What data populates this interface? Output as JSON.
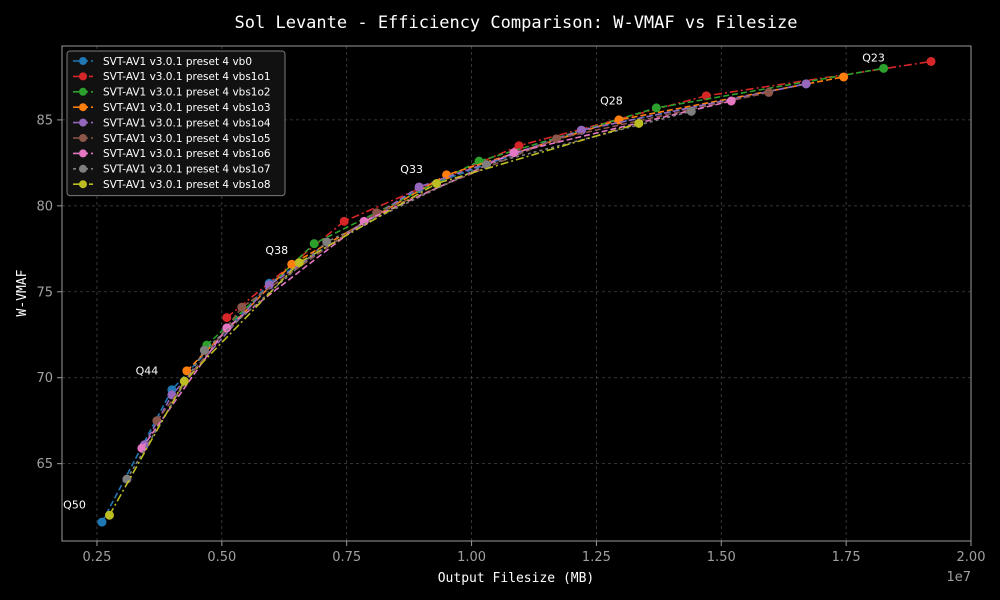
{
  "chart_data": {
    "type": "line",
    "title": "Sol Levante - Efficiency Comparison: W-VMAF vs Filesize",
    "xlabel": "Output Filesize (MB)",
    "ylabel": "W-VMAF",
    "x_offset_label": "1e7",
    "xlim": [
      1800000,
      20000000
    ],
    "ylim": [
      60.5,
      89.3
    ],
    "x_ticks": [
      2500000,
      5000000,
      7500000,
      10000000,
      12500000,
      15000000,
      17500000,
      20000000
    ],
    "x_tick_labels": [
      "0.25",
      "0.50",
      "0.75",
      "1.00",
      "1.25",
      "1.50",
      "1.75",
      "2.00"
    ],
    "y_ticks": [
      65,
      70,
      75,
      80,
      85
    ],
    "y_tick_labels": [
      "65",
      "70",
      "75",
      "80",
      "85"
    ],
    "grid": true,
    "legend_position": "top-left",
    "series": [
      {
        "name": "SVT-AV1 v3.0.1 preset 4 vb0",
        "color": "#1f77b4",
        "dash": "6,3",
        "points": [
          [
            2600000,
            61.6
          ],
          [
            4000000,
            69.3
          ],
          [
            5950000,
            75.5
          ],
          [
            8950000,
            81.0
          ],
          [
            12200000,
            84.4
          ],
          [
            16700000,
            87.1
          ]
        ]
      },
      {
        "name": "SVT-AV1 v3.0.1 preset 4 vbs1o1",
        "color": "#d62728",
        "dash": "8,3,2,3",
        "points": [
          [
            5100000,
            73.5
          ],
          [
            7450000,
            79.1
          ],
          [
            10950000,
            83.5
          ],
          [
            14700000,
            86.4
          ],
          [
            19200000,
            88.4
          ]
        ]
      },
      {
        "name": "SVT-AV1 v3.0.1 preset 4 vbs1o2",
        "color": "#2ca02c",
        "dash": "6,3",
        "points": [
          [
            4700000,
            71.9
          ],
          [
            6850000,
            77.8
          ],
          [
            10150000,
            82.6
          ],
          [
            13700000,
            85.7
          ],
          [
            18250000,
            88.0
          ]
        ]
      },
      {
        "name": "SVT-AV1 v3.0.1 preset 4 vbs1o3",
        "color": "#ff7f0e",
        "dash": "6,3",
        "points": [
          [
            4300000,
            70.4
          ],
          [
            6400000,
            76.6
          ],
          [
            9500000,
            81.8
          ],
          [
            12950000,
            85.0
          ],
          [
            17450000,
            87.5
          ]
        ]
      },
      {
        "name": "SVT-AV1 v3.0.1 preset 4 vbs1o4",
        "color": "#9467bd",
        "dash": "6,3",
        "points": [
          [
            3450000,
            66.1
          ],
          [
            4000000,
            69.0
          ],
          [
            5950000,
            75.4
          ],
          [
            8950000,
            81.1
          ],
          [
            12200000,
            84.4
          ],
          [
            16700000,
            87.1
          ]
        ]
      },
      {
        "name": "SVT-AV1 v3.0.1 preset 4 vbs1o5",
        "color": "#8c564b",
        "dash": "6,3",
        "points": [
          [
            3700000,
            67.5
          ],
          [
            5400000,
            74.1
          ],
          [
            8100000,
            79.6
          ],
          [
            11700000,
            83.9
          ],
          [
            15950000,
            86.6
          ]
        ]
      },
      {
        "name": "SVT-AV1 v3.0.1 preset 4 vbs1o6",
        "color": "#e377c2",
        "dash": "6,3",
        "points": [
          [
            3400000,
            65.9
          ],
          [
            5100000,
            72.9
          ],
          [
            7850000,
            79.1
          ],
          [
            10850000,
            83.1
          ],
          [
            15200000,
            86.1
          ]
        ]
      },
      {
        "name": "SVT-AV1 v3.0.1 preset 4 vbs1o7",
        "color": "#7f7f7f",
        "dash": "3,3",
        "points": [
          [
            3100000,
            64.1
          ],
          [
            4650000,
            71.6
          ],
          [
            7100000,
            77.9
          ],
          [
            10300000,
            82.4
          ],
          [
            14400000,
            85.5
          ]
        ]
      },
      {
        "name": "SVT-AV1 v3.0.1 preset 4 vbs1o8",
        "color": "#bcbd22",
        "dash": "8,3,2,3",
        "points": [
          [
            2750000,
            62.0
          ],
          [
            4250000,
            69.8
          ],
          [
            6550000,
            76.7
          ],
          [
            9300000,
            81.3
          ],
          [
            13350000,
            84.8
          ]
        ]
      }
    ],
    "annotations": [
      {
        "text": "Q50",
        "x": 2050000,
        "y": 62.4
      },
      {
        "text": "Q44",
        "x": 3500000,
        "y": 70.2
      },
      {
        "text": "Q38",
        "x": 6100000,
        "y": 77.2
      },
      {
        "text": "Q33",
        "x": 8800000,
        "y": 81.9
      },
      {
        "text": "Q28",
        "x": 12800000,
        "y": 85.9
      },
      {
        "text": "Q23",
        "x": 18050000,
        "y": 88.4
      }
    ]
  }
}
